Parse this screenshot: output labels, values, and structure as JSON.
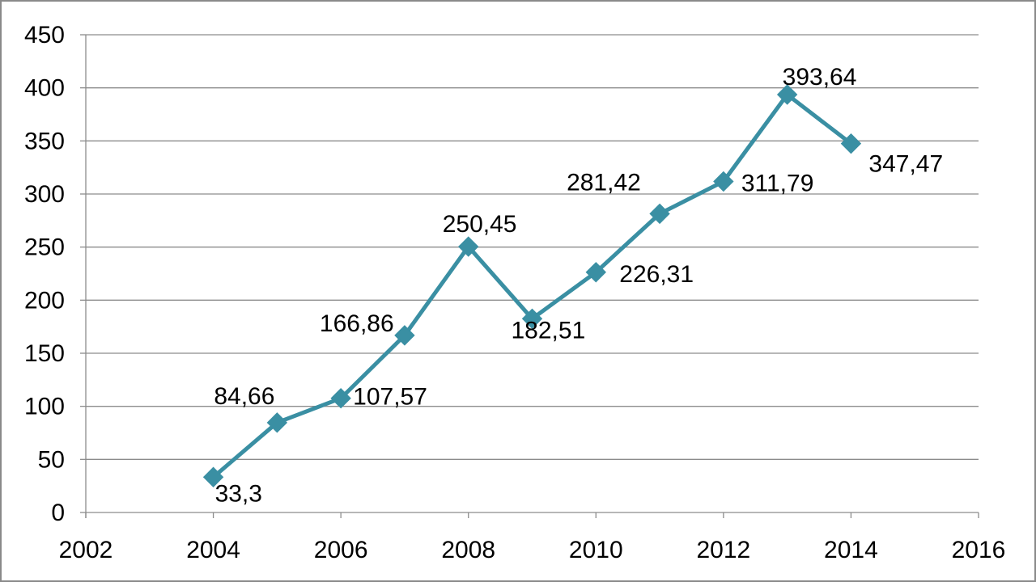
{
  "chart_data": {
    "type": "scatter",
    "mode": "lines+markers",
    "title": "",
    "xlabel": "",
    "ylabel": "",
    "xlim": [
      2002,
      2016
    ],
    "ylim": [
      0,
      450
    ],
    "x_ticks": [
      "2002",
      "2004",
      "2006",
      "2008",
      "2010",
      "2012",
      "2014",
      "2016"
    ],
    "y_ticks": [
      "0",
      "50",
      "100",
      "150",
      "200",
      "250",
      "300",
      "350",
      "400",
      "450"
    ],
    "grid": "horizontal",
    "legend": "none",
    "series": [
      {
        "color": "#3a8fa3",
        "marker": "diamond",
        "x": [
          2004,
          2005,
          2006,
          2007,
          2008,
          2009,
          2010,
          2011,
          2012,
          2013,
          2014
        ],
        "y": [
          33.3,
          84.66,
          107.57,
          166.86,
          250.45,
          182.51,
          226.31,
          281.42,
          311.79,
          393.64,
          347.47
        ],
        "labels": [
          "33,3",
          "84,66",
          "107,57",
          "166,86",
          "250,45",
          "182,51",
          "226,31",
          "281,42",
          "311,79",
          "393,64",
          "347,47"
        ]
      }
    ]
  }
}
